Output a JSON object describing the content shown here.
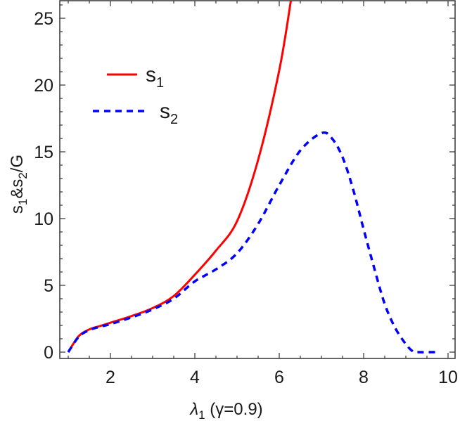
{
  "chart_data": {
    "type": "line",
    "title": "",
    "xlabel": "λ1 (γ=0.9)",
    "xlabel_parts": {
      "main": "λ",
      "sub": "1",
      "rest": " (γ=0.9)"
    },
    "ylabel": "s1&s2/G",
    "ylabel_parts": {
      "a": "s",
      "a_sub": "1",
      "amp": "&",
      "b": "s",
      "b_sub": "2",
      "rest": "/G"
    },
    "xlim": [
      0.8,
      10.15
    ],
    "ylim": [
      -0.5,
      26.4
    ],
    "xticks": [
      2,
      4,
      6,
      8,
      10
    ],
    "xtick_labels": [
      "2",
      "4",
      "6",
      "8",
      "10"
    ],
    "yticks": [
      0,
      5,
      10,
      15,
      20,
      25
    ],
    "ytick_labels": [
      "0",
      "5",
      "10",
      "15",
      "20",
      "25"
    ],
    "grid": false,
    "legend_position": "upper-left",
    "series": [
      {
        "name": "s1",
        "label_main": "s",
        "label_sub": "1",
        "color": "#ff0000",
        "style": "solid",
        "x": [
          1.0,
          1.25,
          1.5,
          1.75,
          2.0,
          2.5,
          3.0,
          3.5,
          4.0,
          4.5,
          5.0,
          5.5,
          6.0,
          6.28
        ],
        "values": [
          0.0,
          1.2,
          1.7,
          1.95,
          2.2,
          2.7,
          3.3,
          4.2,
          5.8,
          7.6,
          9.8,
          14.4,
          21.1,
          26.4
        ]
      },
      {
        "name": "s2",
        "label_main": "s",
        "label_sub": "2",
        "color": "#0000ff",
        "style": "dashed",
        "x": [
          1.0,
          1.25,
          1.5,
          1.75,
          2.0,
          2.5,
          3.0,
          3.5,
          4.0,
          4.5,
          5.0,
          5.5,
          6.0,
          6.5,
          7.0,
          7.25,
          7.5,
          7.75,
          8.0,
          8.25,
          8.5,
          8.75,
          9.0,
          9.17,
          9.3,
          9.77
        ],
        "values": [
          0.0,
          1.15,
          1.65,
          1.9,
          2.1,
          2.6,
          3.2,
          4.0,
          5.3,
          6.2,
          7.4,
          9.6,
          12.5,
          15.1,
          16.4,
          16.0,
          14.6,
          12.2,
          9.2,
          6.3,
          3.6,
          1.8,
          0.6,
          0.05,
          0.0,
          0.0
        ]
      }
    ]
  }
}
